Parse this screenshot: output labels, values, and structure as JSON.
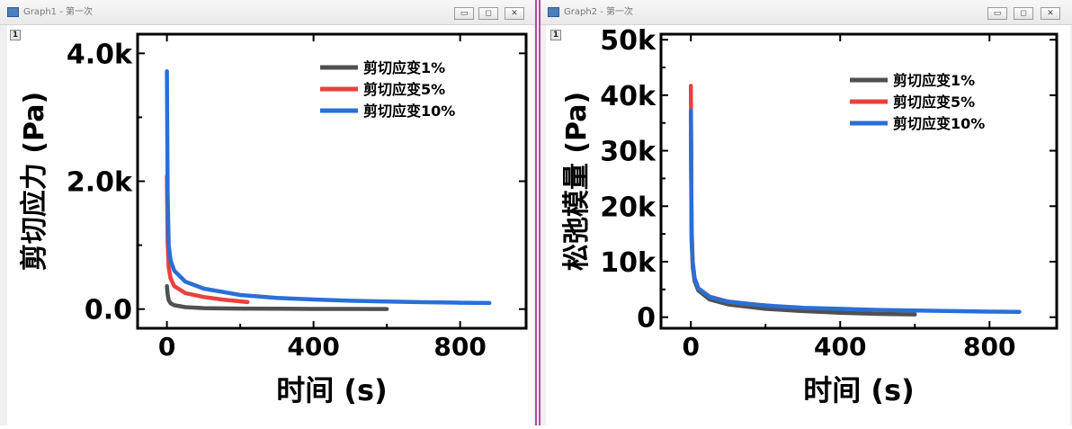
{
  "windows": [
    {
      "title": "Graph1 - 第一次",
      "layer_badge": "1",
      "controls": {
        "minimize": "▭",
        "restore": "◻",
        "close": "✕"
      },
      "chart_data": {
        "type": "line",
        "title": "",
        "xlabel": "时间 (s)",
        "ylabel": "剪切应力 (Pa)",
        "xlim": [
          -80,
          980
        ],
        "ylim": [
          -300,
          4300
        ],
        "xticks": [
          0,
          400,
          800
        ],
        "xtick_labels": [
          "0",
          "400",
          "800"
        ],
        "yticks": [
          0,
          2000,
          4000
        ],
        "ytick_labels": [
          "0.0",
          "2.0k",
          "4.0k"
        ],
        "legend_position": "top-right",
        "series": [
          {
            "name": "剪切应变1%",
            "color": "#505050",
            "x": [
              0,
              2,
              5,
              10,
              20,
              50,
              100,
              200,
              300,
              400,
              500,
              600
            ],
            "y": [
              360,
              230,
              140,
              90,
              60,
              30,
              15,
              8,
              5,
              3,
              2,
              1
            ]
          },
          {
            "name": "剪切应变5%",
            "color": "#e8413f",
            "x": [
              0,
              2,
              5,
              10,
              20,
              50,
              100,
              150,
              220
            ],
            "y": [
              2080,
              1050,
              650,
              480,
              360,
              250,
              190,
              150,
              110
            ]
          },
          {
            "name": "剪切应变10%",
            "color": "#2a6fd6",
            "x": [
              0,
              2,
              5,
              10,
              20,
              50,
              100,
              200,
              300,
              400,
              500,
              600,
              700,
              800,
              880
            ],
            "y": [
              3720,
              1800,
              1000,
              760,
              600,
              430,
              320,
              220,
              175,
              150,
              130,
              118,
              108,
              100,
              95
            ]
          }
        ]
      }
    },
    {
      "title": "Graph2 - 第一次",
      "layer_badge": "1",
      "controls": {
        "minimize": "▭",
        "restore": "◻",
        "close": "✕"
      },
      "chart_data": {
        "type": "line",
        "title": "",
        "xlabel": "时间 (s)",
        "ylabel": "松弛模量 (Pa)",
        "xlim": [
          -80,
          980
        ],
        "ylim": [
          -2000,
          51000
        ],
        "xticks": [
          0,
          400,
          800
        ],
        "xtick_labels": [
          "0",
          "400",
          "800"
        ],
        "yticks": [
          0,
          10000,
          20000,
          30000,
          40000,
          50000
        ],
        "ytick_labels": [
          "0",
          "10k",
          "20k",
          "30k",
          "40k",
          "50k"
        ],
        "legend_position": "top-right",
        "series": [
          {
            "name": "剪切应变1%",
            "color": "#505050",
            "x": [
              0,
              2,
              5,
              10,
              20,
              50,
              100,
              200,
              300,
              400,
              500,
              600
            ],
            "y": [
              36000,
              14000,
              9000,
              6500,
              4800,
              3200,
              2300,
              1500,
              1100,
              800,
              600,
              500
            ]
          },
          {
            "name": "剪切应变5%",
            "color": "#e8413f",
            "x": [
              0,
              2,
              5,
              10,
              20,
              50,
              100,
              150,
              220
            ],
            "y": [
              41700,
              16000,
              10000,
              7000,
              5200,
              3700,
              2800,
              2400,
              2000
            ]
          },
          {
            "name": "剪切应变10%",
            "color": "#2a6fd6",
            "x": [
              0,
              2,
              5,
              10,
              20,
              50,
              100,
              200,
              300,
              400,
              500,
              600,
              700,
              800,
              880
            ],
            "y": [
              37200,
              15000,
              9500,
              7000,
              5200,
              3600,
              2800,
              2100,
              1700,
              1500,
              1300,
              1200,
              1100,
              1000,
              950
            ]
          }
        ]
      }
    }
  ]
}
